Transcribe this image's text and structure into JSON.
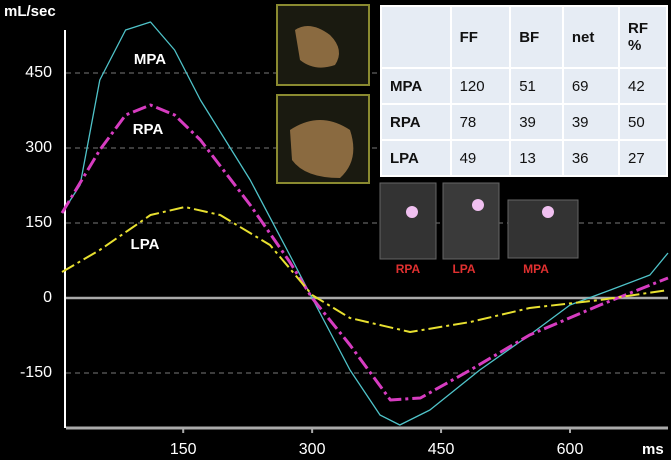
{
  "chart_data": {
    "type": "line",
    "y_label": "mL/sec",
    "x_label": "ms",
    "xlim": [
      9,
      714
    ],
    "ylim": [
      -260,
      560
    ],
    "xticks": [
      150,
      300,
      450,
      600
    ],
    "yticks": [
      450,
      300,
      150,
      0,
      -150
    ],
    "grid": true,
    "series": [
      {
        "name": "MPA",
        "color": "#4fc3c9",
        "dash": "solid",
        "x": [
          9,
          30,
          53,
          83,
          112,
          140,
          170,
          228,
          274,
          300,
          344,
          379,
          402,
          437,
          495,
          553,
          600,
          647,
          693,
          714
        ],
        "values": [
          170,
          226,
          436,
          536,
          552,
          496,
          396,
          236,
          86,
          0,
          -144,
          -234,
          -254,
          -224,
          -144,
          -74,
          -14,
          16,
          46,
          90
        ]
      },
      {
        "name": "RPA",
        "color": "#d63cc0",
        "dash": "dashdot",
        "x": [
          9,
          53,
          83,
          112,
          140,
          170,
          228,
          274,
          300,
          344,
          391,
          426,
          484,
          553,
          635,
          714
        ],
        "values": [
          170,
          296,
          366,
          386,
          366,
          316,
          186,
          72,
          0,
          -94,
          -204,
          -200,
          -144,
          -74,
          -14,
          40
        ]
      },
      {
        "name": "LPA",
        "color": "#e8e030",
        "dash": "dashdot",
        "x": [
          9,
          53,
          112,
          152,
          193,
          251,
          300,
          344,
          414,
          484,
          553,
          635,
          714
        ],
        "values": [
          52,
          96,
          166,
          182,
          166,
          106,
          6,
          -40,
          -68,
          -48,
          -20,
          -4,
          16
        ]
      }
    ]
  },
  "table": {
    "columns": [
      "FF",
      "BF",
      "net",
      "RF %"
    ],
    "rows": [
      [
        "MPA",
        120,
        51,
        69,
        42
      ],
      [
        "RPA",
        78,
        39,
        39,
        50
      ],
      [
        "LPA",
        49,
        13,
        36,
        27
      ]
    ]
  },
  "image_labels": [
    "RPA",
    "LPA",
    "MPA"
  ]
}
